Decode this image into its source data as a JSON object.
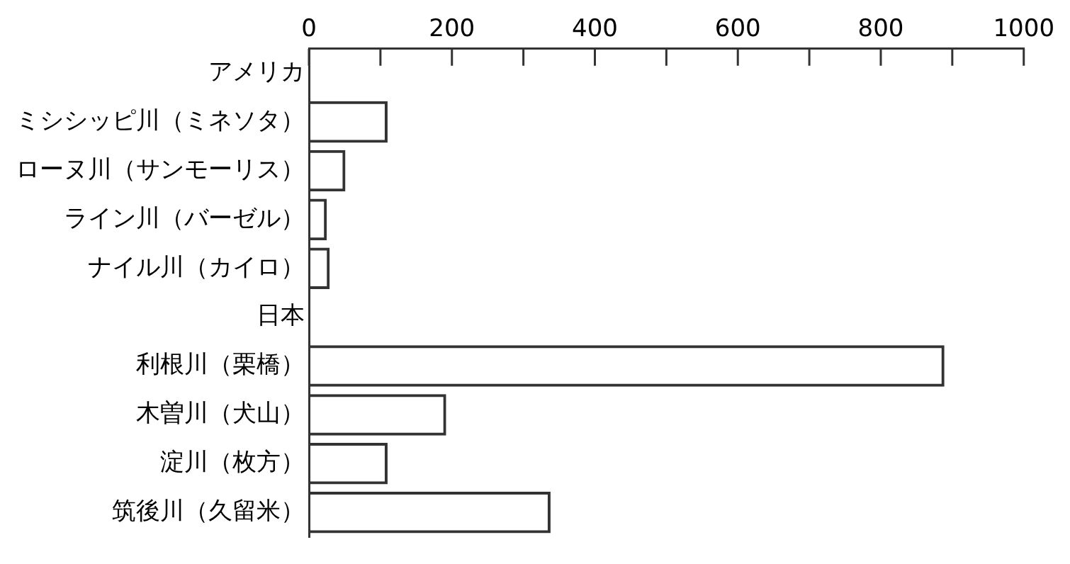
{
  "chart_data": {
    "type": "bar",
    "orientation": "horizontal",
    "categories": [
      "アメリカ",
      "ミシシッピ川（ミネソタ）",
      "ローヌ川（サンモーリス）",
      "ライン川（バーゼル）",
      "ナイル川（カイロ）",
      "日本",
      "利根川（栗橋）",
      "木曽川（犬山）",
      "淀川（枚方）",
      "筑後川（久留米）"
    ],
    "series": [
      {
        "color": "#333333",
        "values": [
          null,
          110,
          51,
          25,
          29,
          null,
          889,
          192,
          110,
          338
        ]
      }
    ],
    "xlim": [
      0,
      1000
    ],
    "xticks": [
      0,
      {
        "value": 100,
        "label": null
      },
      200,
      {
        "value": 300,
        "label": null
      },
      400,
      {
        "value": 500,
        "label": null
      },
      600,
      {
        "value": 700,
        "label": null
      },
      800,
      {
        "value": 900,
        "label": null
      },
      1000
    ],
    "grid": false,
    "legend": false
  }
}
